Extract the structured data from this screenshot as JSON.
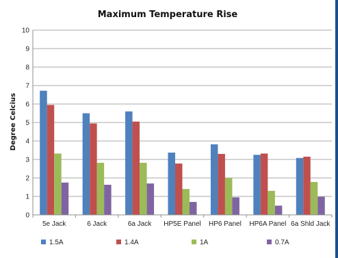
{
  "chart_data": {
    "type": "bar",
    "title": "Maximum Temperature Rise",
    "xlabel": "",
    "ylabel": "Degree Celcius",
    "ylim": [
      0,
      10
    ],
    "yticks": [
      0,
      1,
      2,
      3,
      4,
      5,
      6,
      7,
      8,
      9,
      10
    ],
    "grid": true,
    "legend_position": "bottom",
    "categories": [
      "5e Jack",
      "6 Jack",
      "6a Jack",
      "HP5E Panel",
      "HP6 Panel",
      "HP6A Panel",
      "6a Shld Jack"
    ],
    "series": [
      {
        "name": "1.5A",
        "color": "#4f81bd",
        "values": [
          6.72,
          5.5,
          5.6,
          3.37,
          3.82,
          3.25,
          3.08
        ]
      },
      {
        "name": "1.4A",
        "color": "#c0504d",
        "values": [
          5.95,
          4.95,
          5.05,
          2.78,
          3.3,
          3.32,
          3.15
        ]
      },
      {
        "name": "1A",
        "color": "#9bbb59",
        "values": [
          3.32,
          2.82,
          2.82,
          1.4,
          2.0,
          1.3,
          1.78
        ]
      },
      {
        "name": "0.7A",
        "color": "#8064a2",
        "values": [
          1.75,
          1.63,
          1.7,
          0.7,
          0.95,
          0.5,
          0.98
        ]
      }
    ]
  }
}
